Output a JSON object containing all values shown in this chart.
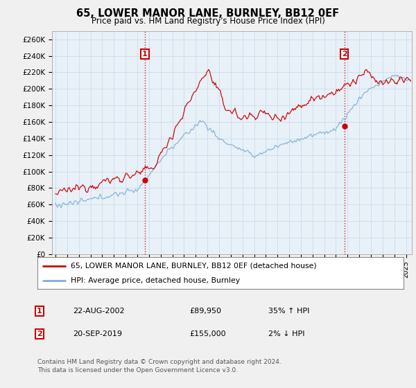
{
  "title": "65, LOWER MANOR LANE, BURNLEY, BB12 0EF",
  "subtitle": "Price paid vs. HM Land Registry's House Price Index (HPI)",
  "ylabel_ticks": [
    "£0",
    "£20K",
    "£40K",
    "£60K",
    "£80K",
    "£100K",
    "£120K",
    "£140K",
    "£160K",
    "£180K",
    "£200K",
    "£220K",
    "£240K",
    "£260K"
  ],
  "ytick_values": [
    0,
    20000,
    40000,
    60000,
    80000,
    100000,
    120000,
    140000,
    160000,
    180000,
    200000,
    220000,
    240000,
    260000
  ],
  "ylim": [
    0,
    270000
  ],
  "xlim_start": 1994.7,
  "xlim_end": 2025.5,
  "red_color": "#cc0000",
  "blue_color": "#7eb0d4",
  "marker1_x": 2002.64,
  "marker1_y": 89950,
  "marker2_x": 2019.72,
  "marker2_y": 155000,
  "legend_line1": "65, LOWER MANOR LANE, BURNLEY, BB12 0EF (detached house)",
  "legend_line2": "HPI: Average price, detached house, Burnley",
  "table_row1_num": "1",
  "table_row1_date": "22-AUG-2002",
  "table_row1_price": "£89,950",
  "table_row1_hpi": "35% ↑ HPI",
  "table_row2_num": "2",
  "table_row2_date": "20-SEP-2019",
  "table_row2_price": "£155,000",
  "table_row2_hpi": "2% ↓ HPI",
  "footer": "Contains HM Land Registry data © Crown copyright and database right 2024.\nThis data is licensed under the Open Government Licence v3.0.",
  "background_color": "#f0f0f0",
  "plot_bg_color": "#e8f0f8"
}
